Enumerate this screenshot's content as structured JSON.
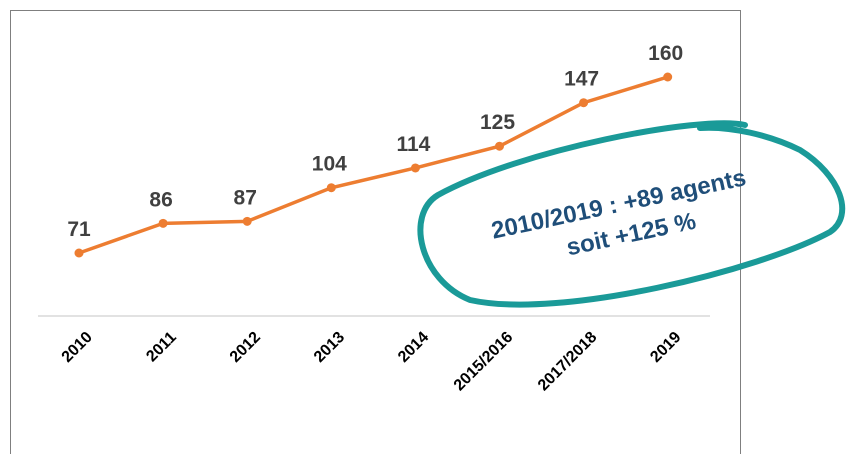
{
  "chart_data": {
    "type": "line",
    "categories": [
      "2010",
      "2011",
      "2012",
      "2013",
      "2014",
      "2015/2016",
      "2017/2018",
      "2019"
    ],
    "series": [
      {
        "color": "#ed7d31",
        "values": [
          71,
          86,
          87,
          104,
          114,
          125,
          147,
          160
        ]
      }
    ],
    "annotation": [
      "2010/2019 : +89 agents",
      "soit +125 %"
    ],
    "annotation_color": "#1f4e79",
    "outline_color": "#1a9a98"
  }
}
